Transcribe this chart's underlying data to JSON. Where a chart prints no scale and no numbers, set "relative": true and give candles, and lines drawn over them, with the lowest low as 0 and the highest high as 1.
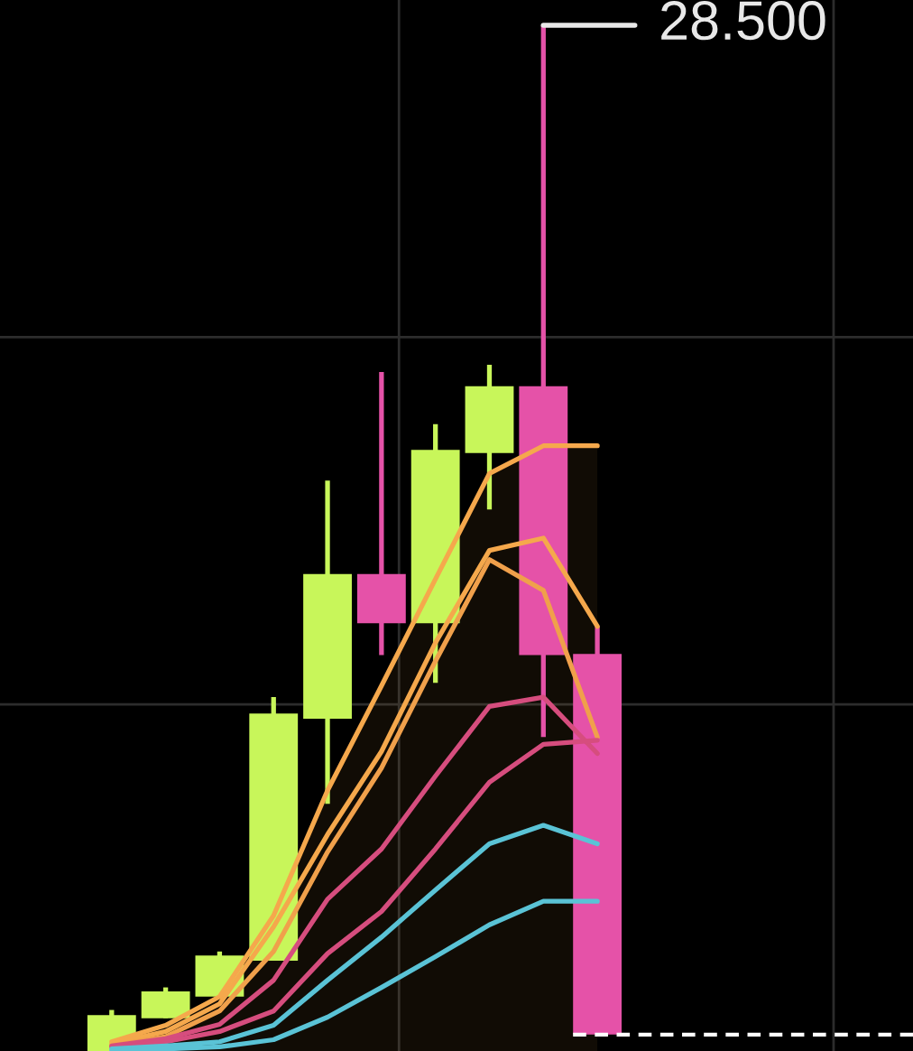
{
  "chart_data": {
    "type": "candlestick",
    "relative": true,
    "categories": [
      null,
      null,
      null,
      null,
      null,
      null,
      null,
      null,
      null,
      null
    ],
    "ohlc": [
      [
        0.0,
        0.04,
        0.0,
        0.035
      ],
      [
        0.032,
        0.062,
        0.032,
        0.058
      ],
      [
        0.053,
        0.097,
        0.053,
        0.093
      ],
      [
        0.088,
        0.345,
        0.088,
        0.329
      ],
      [
        0.324,
        0.556,
        0.241,
        0.465
      ],
      [
        0.465,
        0.662,
        0.386,
        0.417
      ],
      [
        0.417,
        0.611,
        0.359,
        0.586
      ],
      [
        0.583,
        0.669,
        0.528,
        0.648
      ],
      [
        0.648,
        1.0,
        0.306,
        0.386
      ],
      [
        0.387,
        0.414,
        0.016,
        0.016
      ]
    ],
    "colors": [
      "#c8f65a",
      "#c8f65a",
      "#c8f65a",
      "#c8f65a",
      "#c8f65a",
      "#e552a8",
      "#c8f65a",
      "#c8f65a",
      "#e552a8",
      "#e552a8"
    ],
    "series": [
      {
        "type": "area",
        "color": "#f5a84c",
        "values": [
          0.009,
          0.025,
          0.053,
          0.132,
          0.254,
          0.356,
          0.46,
          0.563,
          0.59,
          0.59
        ]
      },
      {
        "type": "line",
        "color": "#f5a84c",
        "values": [
          0.007,
          0.019,
          0.046,
          0.121,
          0.211,
          0.292,
          0.398,
          0.488,
          0.5,
          0.414
        ]
      },
      {
        "type": "line",
        "color": "#f0a04b",
        "values": [
          0.005,
          0.014,
          0.039,
          0.097,
          0.194,
          0.276,
          0.38,
          0.479,
          0.449,
          0.306
        ]
      },
      {
        "type": "line",
        "color": "#d64d7e",
        "values": [
          0.005,
          0.012,
          0.026,
          0.069,
          0.148,
          0.197,
          0.268,
          0.336,
          0.345,
          0.29
        ]
      },
      {
        "type": "line",
        "color": "#d64d7e",
        "values": [
          0.004,
          0.009,
          0.019,
          0.039,
          0.095,
          0.136,
          0.197,
          0.262,
          0.299,
          0.303
        ]
      },
      {
        "type": "line",
        "color": "#5ac3d6",
        "values": [
          0.002,
          0.005,
          0.009,
          0.025,
          0.069,
          0.111,
          0.157,
          0.202,
          0.22,
          0.202
        ]
      },
      {
        "type": "line",
        "color": "#5ac3d6",
        "values": [
          0.0,
          0.002,
          0.004,
          0.011,
          0.033,
          0.062,
          0.092,
          0.123,
          0.146,
          0.146
        ]
      }
    ],
    "ref_lines": [
      {
        "axis": "y",
        "value": 0.696,
        "color": "#2c2c2c",
        "line_style": "solid"
      },
      {
        "axis": "y",
        "value": 0.338,
        "color": "#2c2c2c",
        "line_style": "solid"
      },
      {
        "axis": "y",
        "value": 0.016,
        "color": "#ffffff",
        "line_style": "dashed"
      }
    ],
    "annotations": [
      "28.500"
    ],
    "tick_labels": false
  }
}
